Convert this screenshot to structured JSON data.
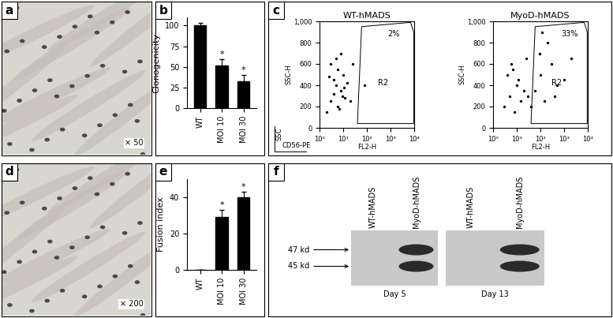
{
  "chart_data": [
    {
      "panel": "a",
      "type": "image",
      "annotation": "× 50"
    },
    {
      "panel": "b",
      "type": "bar",
      "y_label": "Clonogenicity",
      "categories": [
        "WT",
        "MOI 10",
        "MOI 30"
      ],
      "values": [
        100,
        52,
        33
      ],
      "errors": [
        3,
        7,
        7
      ],
      "color": "#000000",
      "ylim": [
        0,
        110
      ],
      "yticks": [
        0,
        25,
        50,
        75,
        100
      ],
      "annotations": [
        {
          "category": "MOI 10",
          "text": "*"
        },
        {
          "category": "MOI 30",
          "text": "*"
        }
      ]
    },
    {
      "panel": "c",
      "type": "scatter",
      "x_label": "FL2-H",
      "y_label": "SSC-H",
      "log": "x",
      "color": "#000000",
      "xlim": [
        1,
        10000
      ],
      "xticks": [
        {
          "value": 1,
          "label": "10⁰"
        },
        {
          "value": 10,
          "label": "10¹"
        },
        {
          "value": 100,
          "label": "10²"
        },
        {
          "value": 1000,
          "label": "10³"
        },
        {
          "value": 10000,
          "label": "10⁴"
        }
      ],
      "ylim": [
        0,
        1000
      ],
      "yticks": [
        0,
        200,
        400,
        600,
        800,
        {
          "value": 1000,
          "label": "1,000"
        }
      ],
      "axis_key": {
        "x_label": "CD56-PE",
        "y_label": "SSC"
      },
      "charts": [
        {
          "title": "WT-hMADS",
          "x": [
            2,
            3,
            4,
            5,
            6,
            8,
            10,
            12,
            15,
            3,
            5,
            7,
            9,
            4,
            6,
            11,
            20,
            25,
            2.5,
            8,
            80
          ],
          "y": [
            150,
            250,
            320,
            400,
            200,
            350,
            500,
            280,
            420,
            600,
            650,
            180,
            300,
            450,
            550,
            380,
            250,
            600,
            480,
            700,
            400
          ],
          "gate": {
            "label": "R2",
            "percent": "2%",
            "x": [
              40,
              60,
              7000,
              9500,
              9500,
              40
            ],
            "y": [
              40,
              950,
              990,
              900,
              40,
              40
            ]
          }
        },
        {
          "title": "MyoD-hMADS",
          "x": [
            3,
            5,
            8,
            10,
            15,
            20,
            4,
            6,
            12,
            30,
            60,
            100,
            150,
            300,
            500,
            90,
            200,
            1000,
            2000,
            40,
            7,
            25,
            400,
            120
          ],
          "y": [
            200,
            300,
            150,
            400,
            250,
            350,
            500,
            600,
            450,
            300,
            350,
            500,
            250,
            600,
            400,
            700,
            800,
            450,
            650,
            200,
            550,
            650,
            300,
            900
          ],
          "gate": {
            "label": "R2",
            "percent": "33%",
            "x": [
              40,
              60,
              7000,
              9500,
              9500,
              40
            ],
            "y": [
              40,
              950,
              990,
              900,
              40,
              40
            ]
          }
        }
      ]
    },
    {
      "panel": "d",
      "type": "image",
      "annotation": "× 200"
    },
    {
      "panel": "e",
      "type": "bar",
      "y_label": "Fusion index",
      "categories": [
        "WT",
        "MOI 10",
        "MOI 30"
      ],
      "values": [
        0,
        29,
        40
      ],
      "errors": [
        0,
        4,
        3
      ],
      "color": "#000000",
      "ylim": [
        0,
        50
      ],
      "yticks": [
        0,
        20,
        40
      ],
      "annotations": [
        {
          "category": "MOI 10",
          "text": "*"
        },
        {
          "category": "MOI 30",
          "text": "*"
        }
      ]
    },
    {
      "panel": "f",
      "type": "blot",
      "markers": [
        "47 kd",
        "45 kd"
      ],
      "groups": [
        {
          "label": "Day 5",
          "lanes": [
            "WT-hMADS",
            "MyoD-hMADS"
          ],
          "bands": [
            [],
            [
              "47 kd",
              "45 kd"
            ]
          ]
        },
        {
          "label": "Day 13",
          "lanes": [
            "WT-hMADS",
            "MyoD-hMADS"
          ],
          "bands": [
            [],
            [
              "47 kd",
              "45 kd"
            ]
          ]
        }
      ]
    }
  ]
}
